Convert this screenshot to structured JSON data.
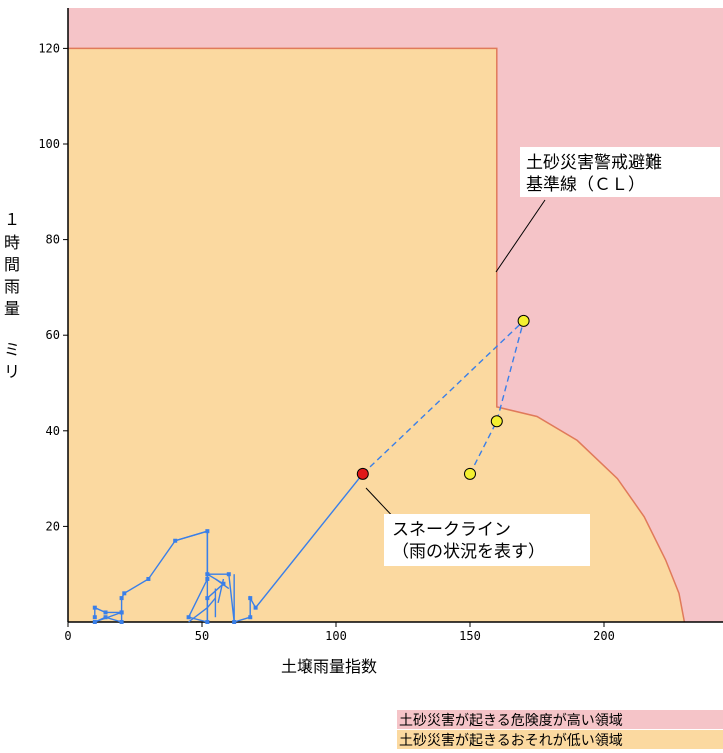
{
  "chart_data": {
    "type": "scatter",
    "xlabel": "土壌雨量指数",
    "ylabel_chars": [
      "１",
      "時",
      "間",
      "雨",
      "量",
      "ミ",
      "リ"
    ],
    "xlim": [
      0,
      245
    ],
    "ylim": [
      0,
      130
    ],
    "xticks": [
      0,
      50,
      100,
      150,
      200
    ],
    "yticks": [
      20,
      40,
      60,
      80,
      100,
      120
    ],
    "grid": false,
    "cl_label_lines": [
      "土砂災害警戒避難",
      "基準線（ＣＬ）"
    ],
    "snake_label_lines": [
      "スネークライン",
      "（雨の状況を表す）"
    ],
    "colors": {
      "high_risk_area": "#f5c4c8",
      "low_risk_area": "#fbd9a0",
      "cl_line": "#e07a5a",
      "snake_line": "#3a7fe8",
      "current_point": "#e01818",
      "forecast_point": "#f4f030"
    },
    "cl_boundary": [
      [
        0,
        120
      ],
      [
        160,
        120
      ],
      [
        160,
        45
      ],
      [
        175,
        43
      ],
      [
        190,
        38
      ],
      [
        205,
        30
      ],
      [
        215,
        22
      ],
      [
        223,
        13
      ],
      [
        228,
        6
      ],
      [
        230,
        0
      ]
    ],
    "legend": [
      {
        "label": "土砂災害が起きる危険度が高い領域",
        "color": "#f5c4c8"
      },
      {
        "label": "土砂災害が起きるおそれが低い領域",
        "color": "#fbd9a0"
      }
    ],
    "snake_line": [
      [
        10,
        1
      ],
      [
        10,
        3
      ],
      [
        14,
        2
      ],
      [
        20,
        2
      ],
      [
        10,
        0
      ],
      [
        14,
        1
      ],
      [
        20,
        0
      ],
      [
        20,
        2
      ],
      [
        20,
        5
      ],
      [
        21,
        6
      ],
      [
        30,
        9
      ],
      [
        40,
        17
      ],
      [
        52,
        19
      ],
      [
        52,
        9
      ],
      [
        45,
        1
      ],
      [
        52,
        0
      ],
      [
        52,
        5
      ],
      [
        58,
        8
      ],
      [
        52,
        10
      ],
      [
        60,
        10
      ],
      [
        62,
        0
      ],
      [
        68,
        1
      ],
      [
        68,
        5
      ],
      [
        70,
        3
      ],
      [
        110,
        31
      ]
    ],
    "cluster_links": [
      [
        [
          40,
          17
        ],
        [
          52,
          19
        ]
      ],
      [
        [
          52,
          19
        ],
        [
          52,
          0
        ]
      ],
      [
        [
          55,
          7
        ],
        [
          55,
          1
        ]
      ],
      [
        [
          58,
          9
        ],
        [
          56,
          4
        ]
      ],
      [
        [
          62,
          10
        ],
        [
          62,
          0
        ]
      ],
      [
        [
          55,
          9
        ],
        [
          60,
          7
        ]
      ],
      [
        [
          45,
          0
        ],
        [
          52,
          3
        ]
      ],
      [
        [
          52,
          3
        ],
        [
          55,
          5
        ]
      ]
    ],
    "current_point": [
      110,
      31
    ],
    "forecast_series": [
      {
        "points": [
          [
            110,
            31
          ],
          [
            170,
            63
          ]
        ]
      },
      {
        "points": [
          [
            150,
            31
          ],
          [
            160,
            42
          ],
          [
            170,
            63
          ]
        ]
      }
    ],
    "forecast_points": [
      [
        170,
        63
      ],
      [
        160,
        42
      ],
      [
        150,
        31
      ]
    ]
  }
}
